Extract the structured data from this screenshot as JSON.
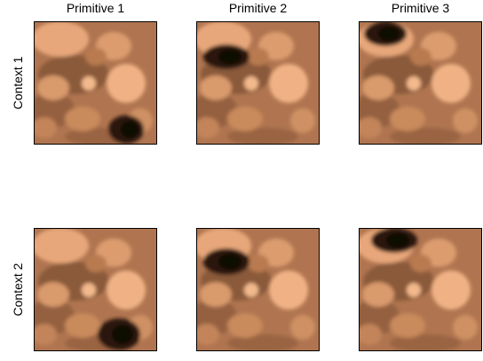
{
  "column_titles": [
    "Primitive 1",
    "Primitive 2",
    "Primitive 3"
  ],
  "row_labels": [
    "Context 1",
    "Context 2"
  ]
}
